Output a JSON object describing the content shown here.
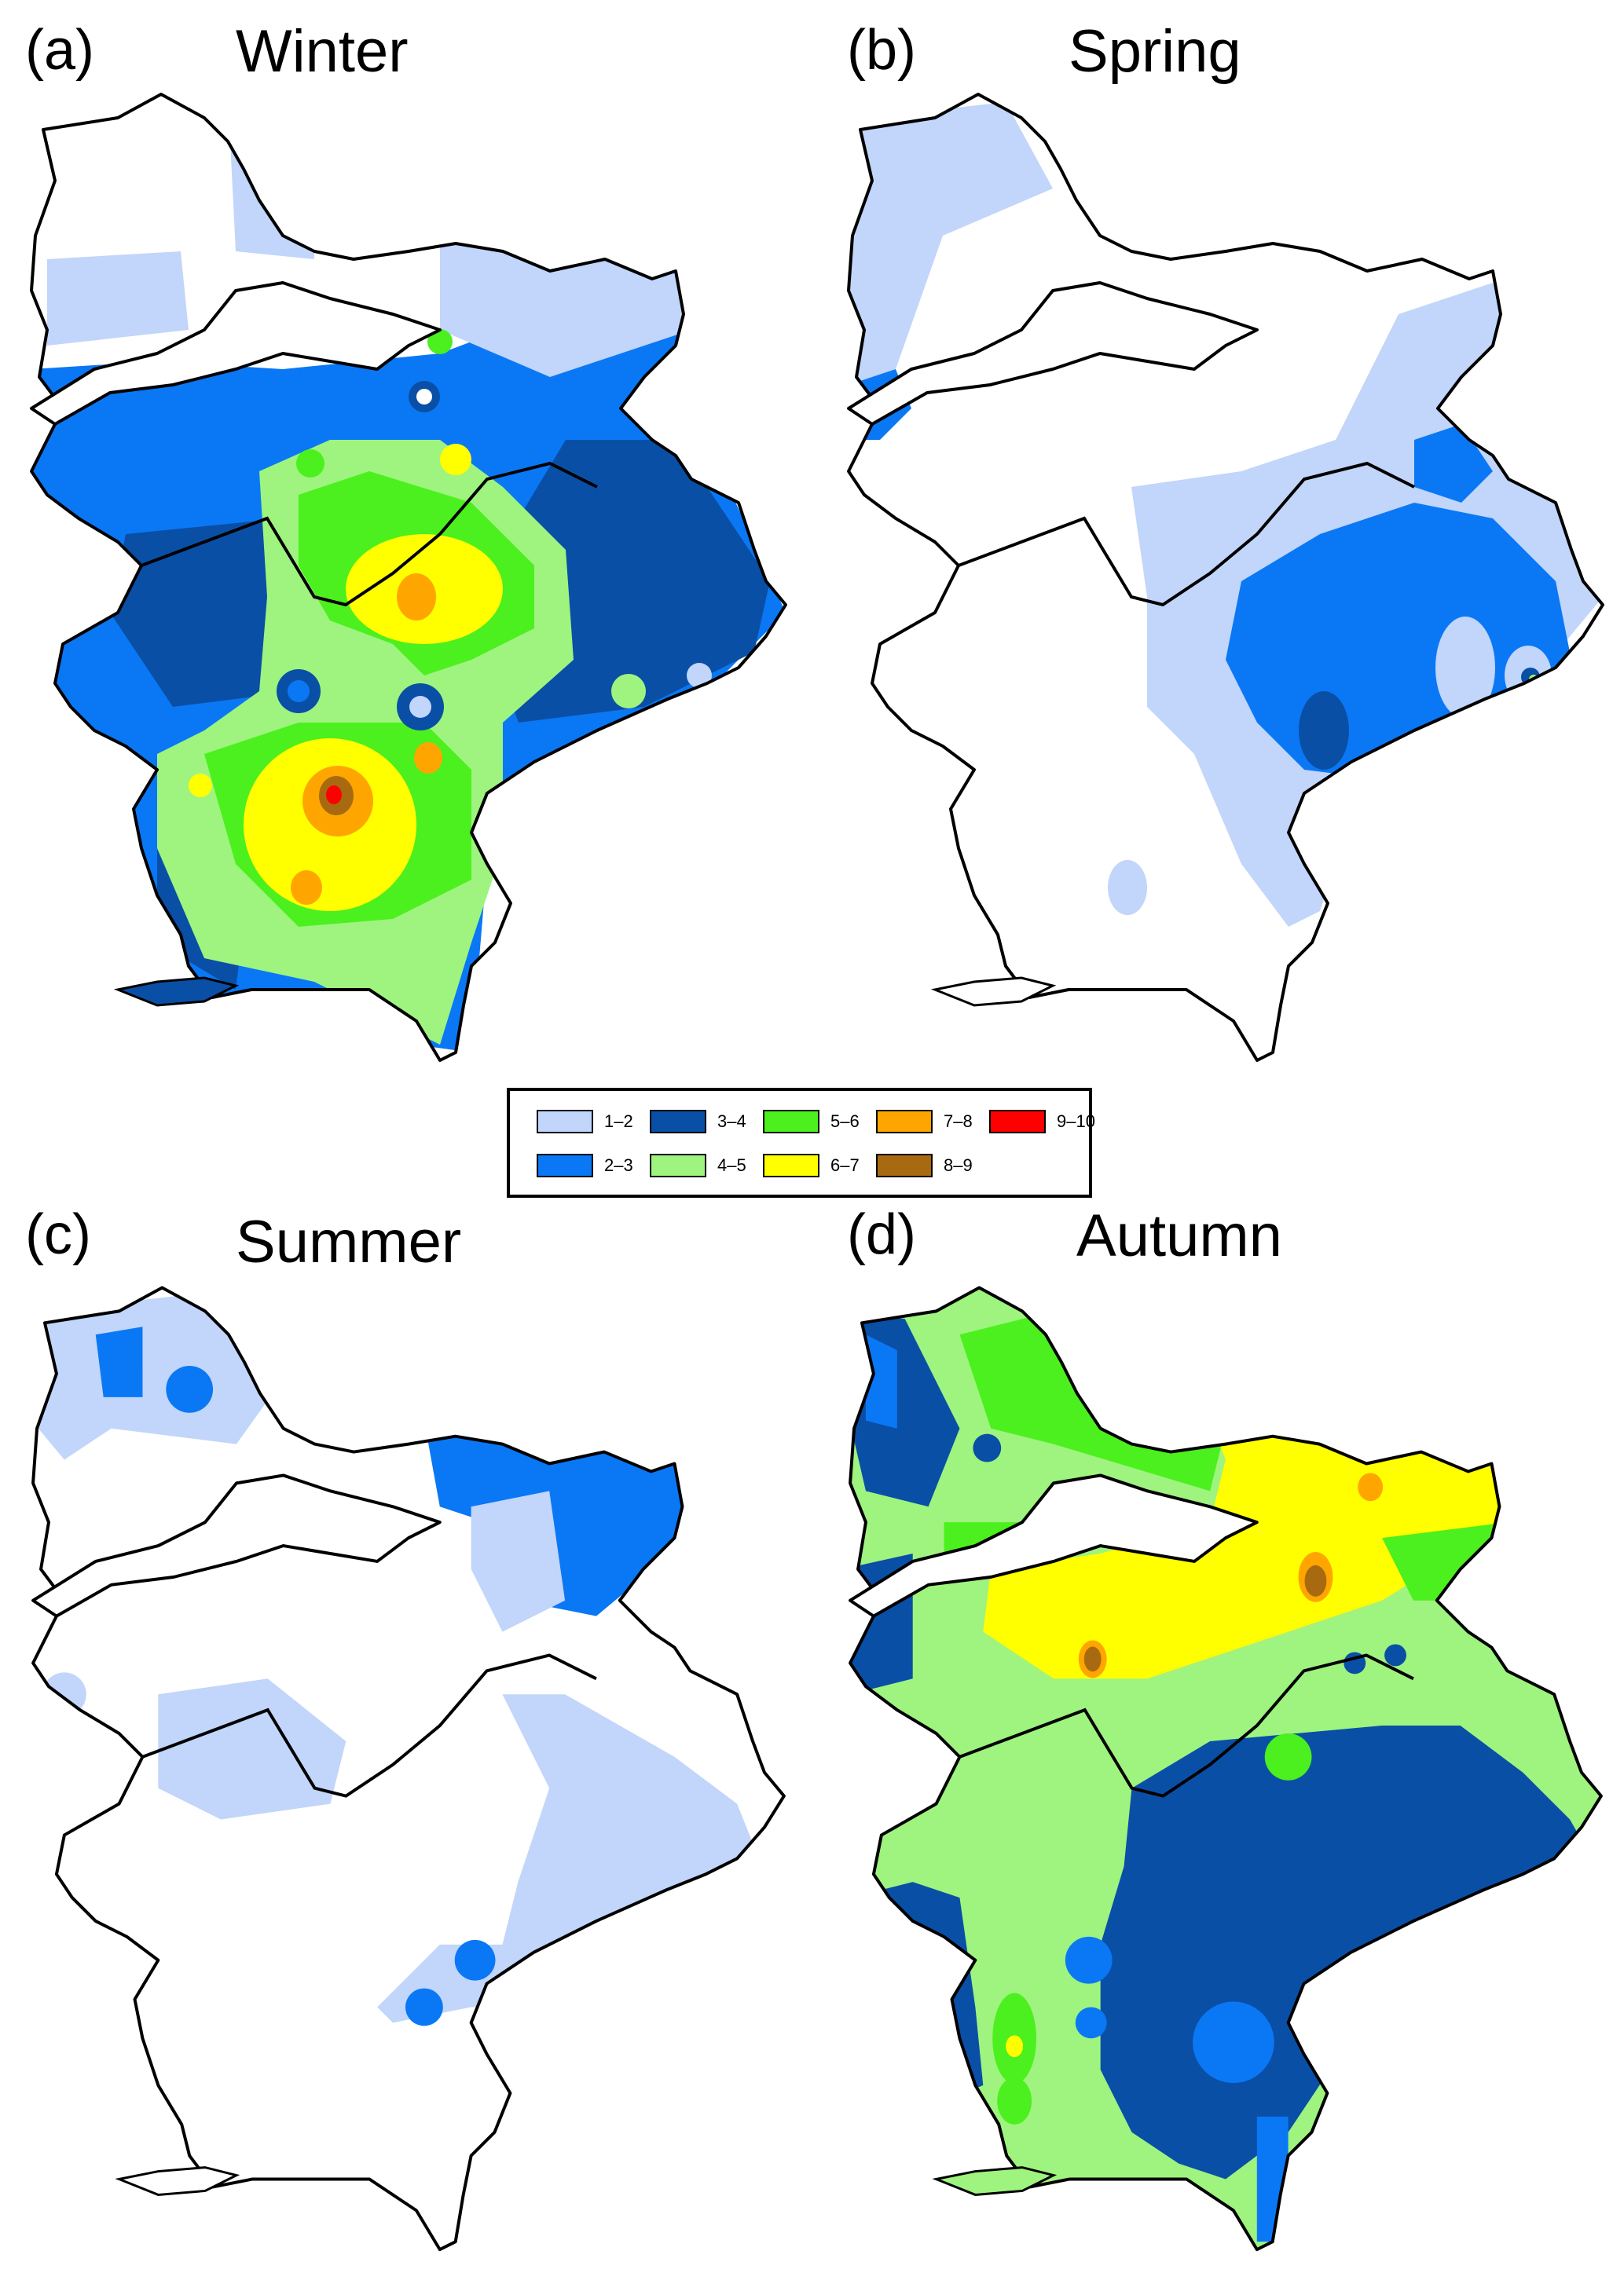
{
  "panels": [
    {
      "label": "(a)",
      "title": "Winter"
    },
    {
      "label": "(b)",
      "title": "Spring"
    },
    {
      "label": "(c)",
      "title": "Summer"
    },
    {
      "label": "(d)",
      "title": "Autumn"
    }
  ],
  "legend": {
    "items": [
      {
        "label": "1–2",
        "color": "#c2d5fa"
      },
      {
        "label": "2–3",
        "color": "#0a78f5"
      },
      {
        "label": "3–4",
        "color": "#0a4fa6"
      },
      {
        "label": "4–5",
        "color": "#9ef47e"
      },
      {
        "label": "5–6",
        "color": "#4cf01e"
      },
      {
        "label": "6–7",
        "color": "#ffff00"
      },
      {
        "label": "7–8",
        "color": "#ffa500"
      },
      {
        "label": "8–9",
        "color": "#a86a10"
      },
      {
        "label": "9–10",
        "color": "#ff0000"
      }
    ]
  }
}
